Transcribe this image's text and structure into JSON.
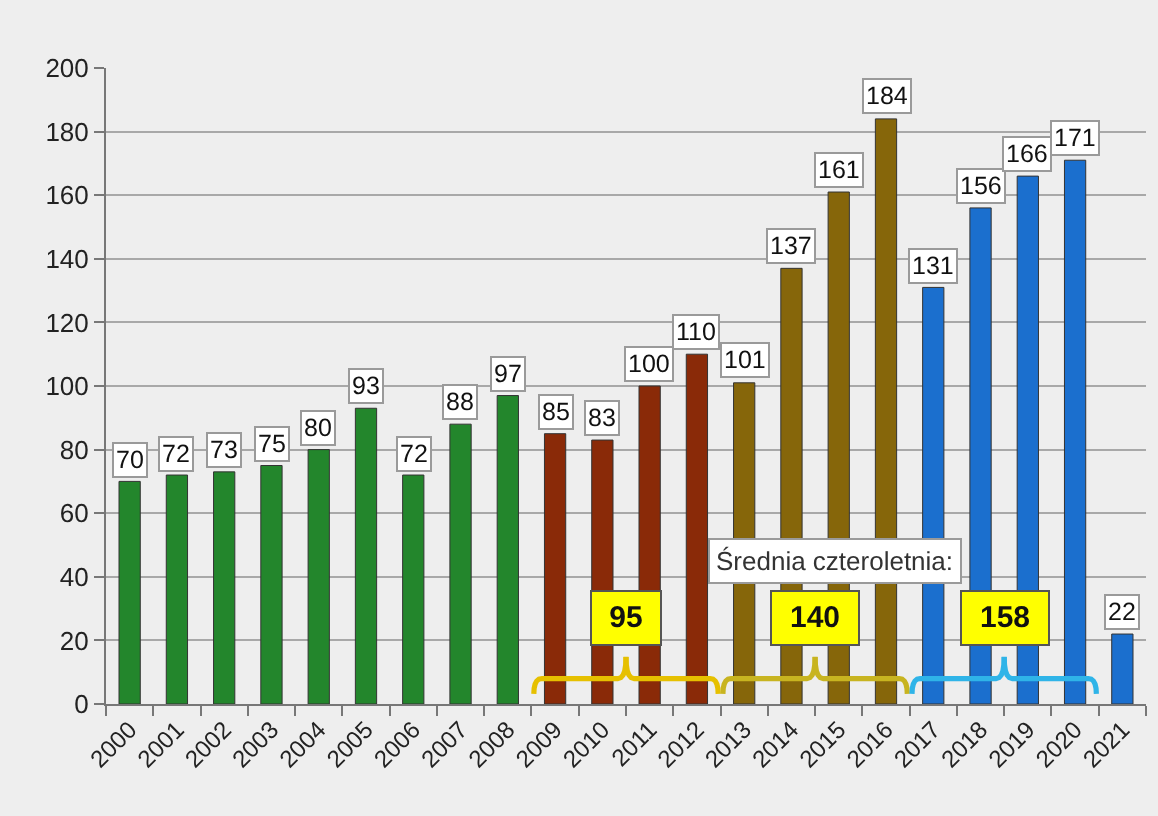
{
  "chart_data": {
    "type": "bar",
    "categories": [
      "2000",
      "2001",
      "2002",
      "2003",
      "2004",
      "2005",
      "2006",
      "2007",
      "2008",
      "2009",
      "2010",
      "2011",
      "2012",
      "2013",
      "2014",
      "2015",
      "2016",
      "2017",
      "2018",
      "2019",
      "2020",
      "2021"
    ],
    "values": [
      70,
      72,
      73,
      75,
      80,
      93,
      72,
      88,
      97,
      85,
      83,
      100,
      110,
      101,
      137,
      161,
      184,
      131,
      156,
      166,
      171,
      22
    ],
    "colors": [
      "#23862c",
      "#23862c",
      "#23862c",
      "#23862c",
      "#23862c",
      "#23862c",
      "#23862c",
      "#23862c",
      "#23862c",
      "#8a2a08",
      "#8a2a08",
      "#8a2a08",
      "#8a2a08",
      "#86660a",
      "#86660a",
      "#86660a",
      "#86660a",
      "#1b6fce",
      "#1b6fce",
      "#1b6fce",
      "#1b6fce",
      "#1b6fce"
    ],
    "ylim": [
      0,
      200
    ],
    "yticks": [
      0,
      20,
      40,
      60,
      80,
      100,
      120,
      140,
      160,
      180,
      200
    ],
    "grid": "y",
    "data_labels": true,
    "annotations": [
      "Średnia czteroletnia:",
      "95",
      "140",
      "158"
    ]
  }
}
